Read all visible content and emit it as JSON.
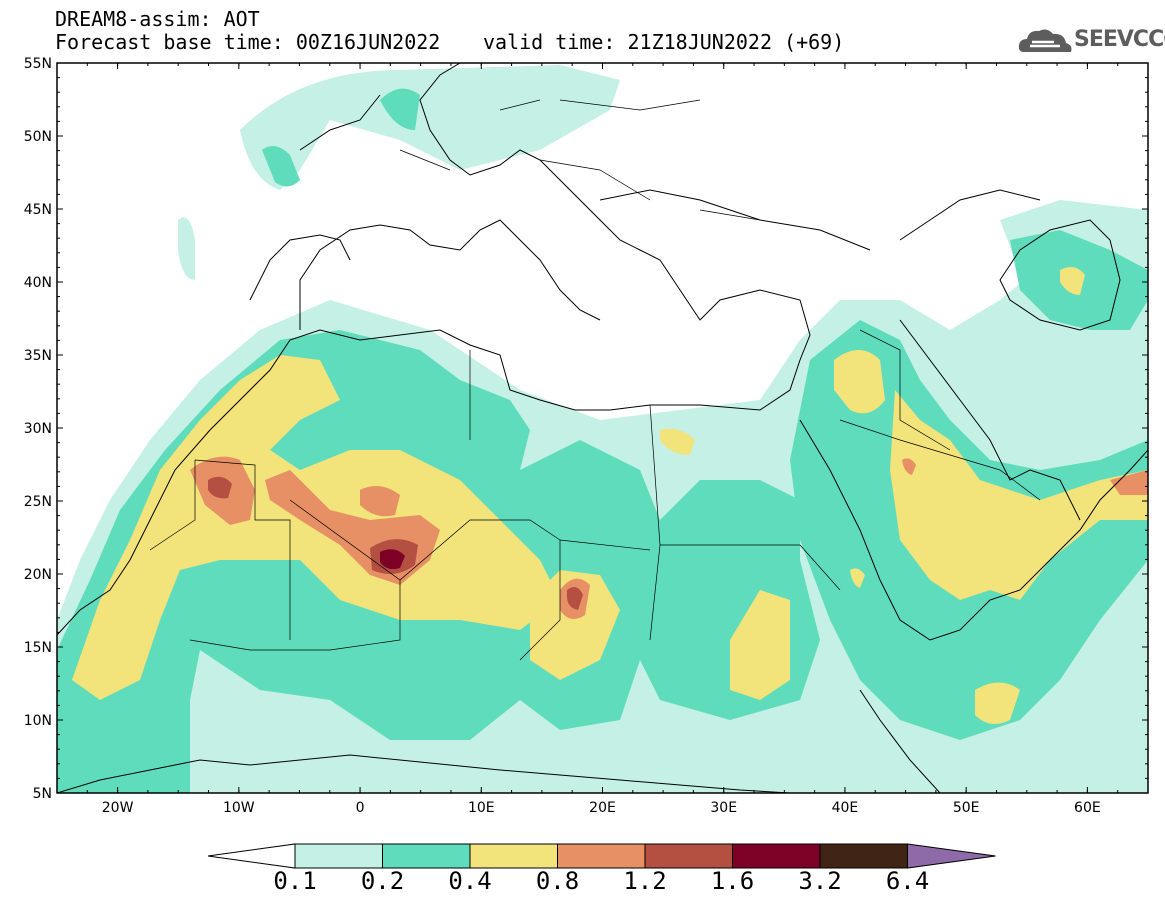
{
  "header": {
    "title": "DREAM8-assim: AOT",
    "base_time": "Forecast base time: 00Z16JUN2022",
    "valid_time": "valid time: 21Z18JUN2022 (+69)"
  },
  "logo": {
    "text": "SEEVCCC",
    "icon": "cloud-icon"
  },
  "axes": {
    "lat_labels": [
      "55N",
      "50N",
      "45N",
      "40N",
      "35N",
      "30N",
      "25N",
      "20N",
      "15N",
      "10N",
      "5N"
    ],
    "lon_labels": [
      "20W",
      "10W",
      "0",
      "10E",
      "20E",
      "30E",
      "40E",
      "50E",
      "60E"
    ],
    "lat_range": [
      5,
      55
    ],
    "lon_range": [
      -25,
      65
    ]
  },
  "colorbar": {
    "labels": [
      "0.1",
      "0.2",
      "0.4",
      "0.8",
      "1.2",
      "1.6",
      "3.2",
      "6.4"
    ],
    "colors": [
      "#ffffff",
      "#c4f0e6",
      "#5fdcbc",
      "#f2e37a",
      "#e79065",
      "#b35042",
      "#7d0026",
      "#3f2315",
      "#8f6aa8"
    ]
  }
}
